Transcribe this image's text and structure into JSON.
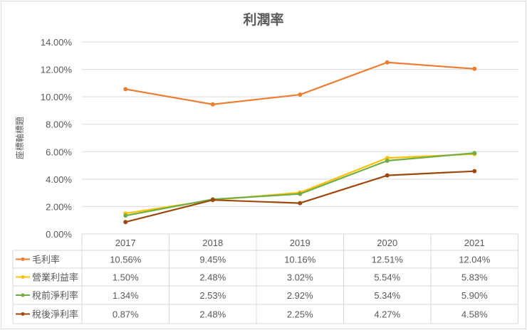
{
  "chart_data": {
    "type": "line",
    "title": "利潤率",
    "ylabel": "座標軸標題",
    "xlabel": "",
    "ylim": [
      0,
      14
    ],
    "yticks": [
      "0.00%",
      "2.00%",
      "4.00%",
      "6.00%",
      "8.00%",
      "10.00%",
      "12.00%",
      "14.00%"
    ],
    "grid": true,
    "legend": "data-table",
    "categories": [
      "2017",
      "2018",
      "2019",
      "2020",
      "2021"
    ],
    "series": [
      {
        "name": "毛利率",
        "color": "#ed7d31",
        "values": [
          10.56,
          9.45,
          10.16,
          12.51,
          12.04
        ],
        "labels": [
          "10.56%",
          "9.45%",
          "10.16%",
          "12.51%",
          "12.04%"
        ]
      },
      {
        "name": "營業利益率",
        "color": "#ffc000",
        "values": [
          1.5,
          2.48,
          3.02,
          5.54,
          5.83
        ],
        "labels": [
          "1.50%",
          "2.48%",
          "3.02%",
          "5.54%",
          "5.83%"
        ]
      },
      {
        "name": "稅前淨利率",
        "color": "#70ad47",
        "values": [
          1.34,
          2.53,
          2.92,
          5.34,
          5.9
        ],
        "labels": [
          "1.34%",
          "2.53%",
          "2.92%",
          "5.34%",
          "5.90%"
        ]
      },
      {
        "name": "稅後淨利率",
        "color": "#9e480e",
        "values": [
          0.87,
          2.48,
          2.25,
          4.27,
          4.58
        ],
        "labels": [
          "0.87%",
          "2.48%",
          "2.25%",
          "4.27%",
          "4.58%"
        ]
      }
    ]
  }
}
